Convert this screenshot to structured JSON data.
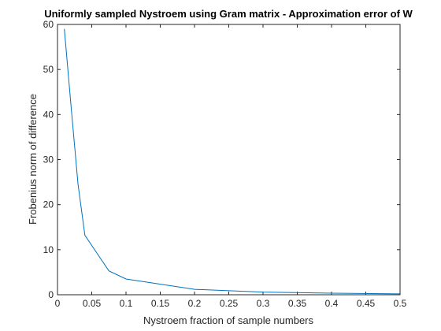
{
  "chart_data": {
    "type": "line",
    "title": "Uniformly sampled Nystroem using Gram matrix - Approximation error of W",
    "xlabel": "Nystroem fraction of sample numbers",
    "ylabel": "Frobenius norm of difference",
    "xlim": [
      0,
      0.5
    ],
    "ylim": [
      0,
      60
    ],
    "x_ticks": [
      "0",
      "0.05",
      "0.1",
      "0.15",
      "0.2",
      "0.25",
      "0.3",
      "0.35",
      "0.4",
      "0.45",
      "0.5"
    ],
    "y_ticks": [
      "0",
      "10",
      "20",
      "30",
      "40",
      "50",
      "60"
    ],
    "grid": false,
    "series": [
      {
        "color": "#0072BD",
        "x": [
          0.01,
          0.02,
          0.03,
          0.04,
          0.075,
          0.1,
          0.2,
          0.3,
          0.4,
          0.5
        ],
        "y": [
          59.0,
          41.5,
          24.5,
          13.2,
          5.3,
          3.5,
          1.2,
          0.6,
          0.35,
          0.2
        ]
      }
    ]
  }
}
